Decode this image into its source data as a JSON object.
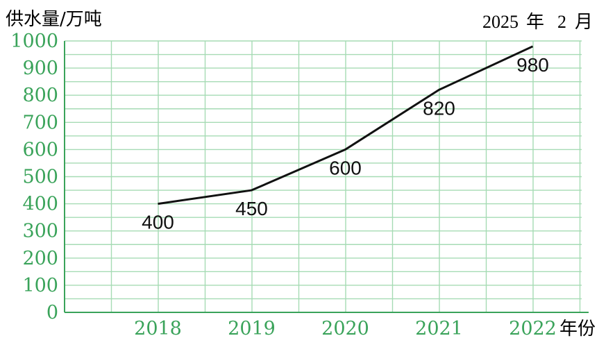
{
  "colors": {
    "accent": "#3aa35a",
    "grid": "#a6dbb4",
    "line": "#111111",
    "text": "#111111"
  },
  "date_stamp": {
    "year": "2025",
    "year_unit": "年",
    "month": "2",
    "month_unit": "月"
  },
  "chart_data": {
    "type": "line",
    "ylabel": "供水量/万吨",
    "xlabel": "年份",
    "categories": [
      "2018",
      "2019",
      "2020",
      "2021",
      "2022"
    ],
    "series": [
      {
        "values": [
          400,
          450,
          600,
          820,
          980
        ]
      }
    ],
    "data_labels": [
      "400",
      "450",
      "600",
      "820",
      "980"
    ],
    "ylim": [
      0,
      1000
    ],
    "yticks": [
      0,
      100,
      200,
      300,
      400,
      500,
      600,
      700,
      800,
      900,
      1000
    ],
    "ytick_labels": [
      "0",
      "100",
      "200",
      "300",
      "400",
      "500",
      "600",
      "700",
      "800",
      "900",
      "1000"
    ],
    "grid": true,
    "legend": "none"
  }
}
